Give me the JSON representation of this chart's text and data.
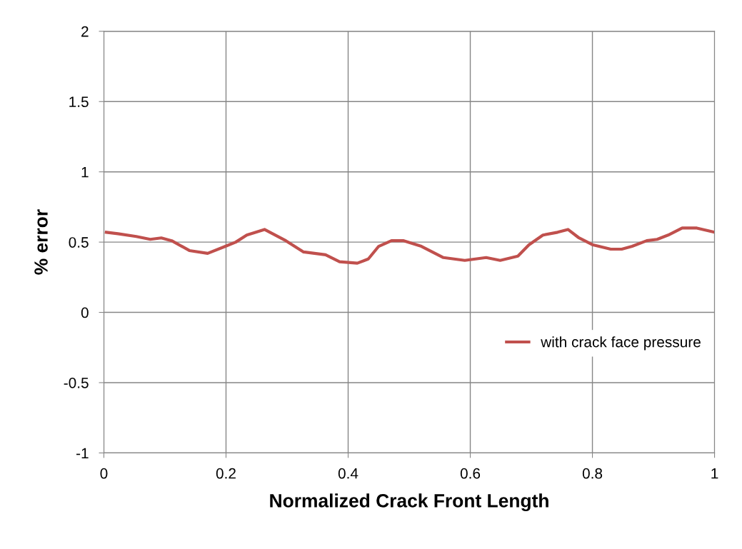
{
  "chart_data": {
    "type": "line",
    "xlabel": "Normalized Crack Front Length",
    "ylabel": "% error",
    "xlim": [
      0,
      1
    ],
    "xticks": [
      0,
      0.2,
      0.4,
      0.6,
      0.8,
      1
    ],
    "ylim": [
      -1,
      2
    ],
    "yticks": [
      -1,
      -0.5,
      0,
      0.5,
      1,
      1.5,
      2
    ],
    "grid": true,
    "legend": "right",
    "marker": "none",
    "line_style": "solid",
    "series": [
      {
        "name": "with crack face pressure",
        "color": "#c0504d",
        "x": [
          0.004,
          0.023,
          0.053,
          0.076,
          0.094,
          0.111,
          0.14,
          0.17,
          0.199,
          0.216,
          0.234,
          0.263,
          0.298,
          0.327,
          0.363,
          0.386,
          0.415,
          0.433,
          0.45,
          0.471,
          0.491,
          0.52,
          0.556,
          0.591,
          0.626,
          0.649,
          0.678,
          0.696,
          0.719,
          0.743,
          0.76,
          0.778,
          0.801,
          0.83,
          0.848,
          0.865,
          0.889,
          0.906,
          0.924,
          0.947,
          0.971,
          1.0
        ],
        "values": [
          0.57,
          0.56,
          0.54,
          0.52,
          0.53,
          0.51,
          0.44,
          0.42,
          0.47,
          0.5,
          0.55,
          0.59,
          0.51,
          0.43,
          0.41,
          0.36,
          0.35,
          0.38,
          0.47,
          0.51,
          0.51,
          0.47,
          0.39,
          0.37,
          0.39,
          0.37,
          0.4,
          0.48,
          0.55,
          0.57,
          0.59,
          0.53,
          0.48,
          0.45,
          0.45,
          0.47,
          0.51,
          0.52,
          0.55,
          0.6,
          0.6,
          0.57
        ]
      }
    ]
  }
}
